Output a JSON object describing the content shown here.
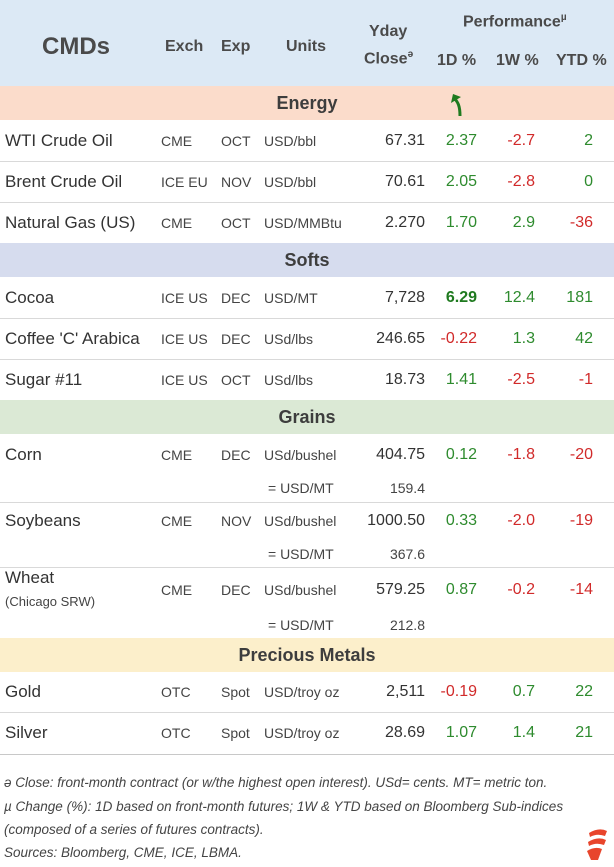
{
  "header": {
    "title": "CMDs",
    "exch": "Exch",
    "exp": "Exp",
    "units": "Units",
    "yday_line1": "Yday",
    "yday_line2": "Close",
    "yday_mark": "ə",
    "performance": "Performance",
    "performance_mark": "µ",
    "d1": "1D %",
    "w1": "1W %",
    "ytd": "YTD %"
  },
  "sections": {
    "energy": "Energy",
    "softs": "Softs",
    "grains": "Grains",
    "metals": "Precious Metals"
  },
  "rows": {
    "wti": {
      "name": "WTI Crude Oil",
      "exch": "CME",
      "exp": "OCT",
      "units": "USD/bbl",
      "close": "67.31",
      "d1": "2.37",
      "w1": "-2.7",
      "ytd": "2"
    },
    "brent": {
      "name": "Brent Crude Oil",
      "exch": "ICE EU",
      "exp": "NOV",
      "units": "USD/bbl",
      "close": "70.61",
      "d1": "2.05",
      "w1": "-2.8",
      "ytd": "0"
    },
    "natgas": {
      "name": "Natural Gas (US)",
      "exch": "CME",
      "exp": "OCT",
      "units": "USD/MMBtu",
      "close": "2.270",
      "d1": "1.70",
      "w1": "2.9",
      "ytd": "-36"
    },
    "cocoa": {
      "name": "Cocoa",
      "exch": "ICE US",
      "exp": "DEC",
      "units": "USD/MT",
      "close": "7,728",
      "d1": "6.29",
      "w1": "12.4",
      "ytd": "181"
    },
    "coffee": {
      "name": "Coffee 'C' Arabica",
      "exch": "ICE US",
      "exp": "DEC",
      "units": "USd/lbs",
      "close": "246.65",
      "d1": "-0.22",
      "w1": "1.3",
      "ytd": "42"
    },
    "sugar": {
      "name": "Sugar #11",
      "exch": "ICE US",
      "exp": "OCT",
      "units": "USd/lbs",
      "close": "18.73",
      "d1": "1.41",
      "w1": "-2.5",
      "ytd": "-1"
    },
    "corn": {
      "name": "Corn",
      "exch": "CME",
      "exp": "DEC",
      "units": "USd/bushel",
      "close": "404.75",
      "d1": "0.12",
      "w1": "-1.8",
      "ytd": "-20",
      "eq": "= USD/MT",
      "eq_val": "159.4"
    },
    "soy": {
      "name": "Soybeans",
      "exch": "CME",
      "exp": "NOV",
      "units": "USd/bushel",
      "close": "1000.50",
      "d1": "0.33",
      "w1": "-2.0",
      "ytd": "-19",
      "eq": "= USD/MT",
      "eq_val": "367.6"
    },
    "wheat": {
      "name": "Wheat",
      "name_sub": "(Chicago SRW)",
      "exch": "CME",
      "exp": "DEC",
      "units": "USd/bushel",
      "close": "579.25",
      "d1": "0.87",
      "w1": "-0.2",
      "ytd": "-14",
      "eq": "= USD/MT",
      "eq_val": "212.8"
    },
    "gold": {
      "name": "Gold",
      "exch": "OTC",
      "exp": "Spot",
      "units": "USD/troy oz",
      "close": "2,511",
      "d1": "-0.19",
      "w1": "0.7",
      "ytd": "22"
    },
    "silver": {
      "name": "Silver",
      "exch": "OTC",
      "exp": "Spot",
      "units": "USD/troy oz",
      "close": "28.69",
      "d1": "1.07",
      "w1": "1.4",
      "ytd": "21"
    }
  },
  "notes": {
    "n1": "ə Close: front-month contract (or w/the highest open interest). USd= cents. MT= metric ton.",
    "n2a": "µ Change (%): 1D based on front-month futures; 1W & YTD based on Bloomberg Sub-indices",
    "n2b": "(composed of a series of futures contracts).",
    "n3": "Sources: Bloomberg, CME, ICE, LBMA."
  },
  "colors": {
    "header": "#dce9f5",
    "energy": "#fbdccb",
    "softs": "#d6dcee",
    "grains": "#dbe9d5",
    "metals": "#fcefcb",
    "positive": "#2e8b2e",
    "negative": "#d12a2a",
    "logo": "#e8452c"
  }
}
